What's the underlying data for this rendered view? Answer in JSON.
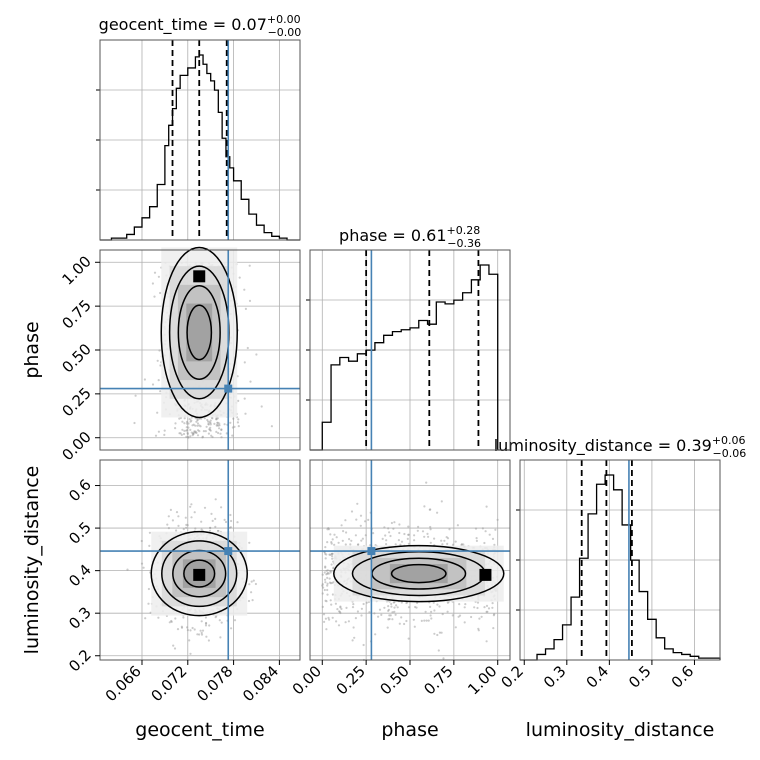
{
  "chart_data": {
    "type": "corner",
    "parameters": [
      "geocent_time",
      "phase",
      "luminosity_distance"
    ],
    "axis_labels": {
      "geocent_time": "geocent_time",
      "phase": "phase",
      "luminosity_distance": "luminosity_distance"
    },
    "titles": [
      {
        "param": "geocent_time",
        "name": "geocent_time",
        "median": "0.07",
        "plus": "+0.00",
        "minus": "−0.00"
      },
      {
        "param": "phase",
        "name": "phase",
        "median": "0.61",
        "plus": "+0.28",
        "minus": "−0.36"
      },
      {
        "param": "luminosity_distance",
        "name": "luminosity_distance",
        "median": "0.39",
        "plus": "+0.06",
        "minus": "−0.06"
      }
    ],
    "ranges": {
      "geocent_time": [
        0.0605,
        0.0867
      ],
      "phase": [
        -0.07,
        1.07
      ],
      "luminosity_distance": [
        0.19,
        0.66
      ]
    },
    "ticks": {
      "geocent_time": [
        0.066,
        0.072,
        0.078,
        0.084
      ],
      "phase": [
        0.0,
        0.25,
        0.5,
        0.75,
        1.0
      ],
      "luminosity_distance": [
        0.2,
        0.3,
        0.4,
        0.5,
        0.6
      ]
    },
    "tick_labels": {
      "geocent_time": [
        "0.066",
        "0.072",
        "0.078",
        "0.084"
      ],
      "phase": [
        "0.00",
        "0.25",
        "0.50",
        "0.75",
        "1.00"
      ],
      "luminosity_distance": [
        "0.2",
        "0.3",
        "0.4",
        "0.5",
        "0.6"
      ]
    },
    "truths": {
      "geocent_time": 0.0773,
      "phase": 0.28,
      "luminosity_distance": 0.446
    },
    "quantiles": {
      "geocent_time": [
        0.07,
        0.0735,
        0.0771
      ],
      "phase": [
        0.25,
        0.61,
        0.89
      ],
      "luminosity_distance": [
        0.335,
        0.393,
        0.453
      ]
    },
    "histograms": {
      "geocent_time": {
        "edges": [
          0.0605,
          0.062,
          0.064,
          0.065,
          0.066,
          0.067,
          0.068,
          0.069,
          0.0695,
          0.07,
          0.0705,
          0.071,
          0.072,
          0.073,
          0.0735,
          0.074,
          0.0745,
          0.075,
          0.0755,
          0.076,
          0.0765,
          0.077,
          0.0775,
          0.078,
          0.079,
          0.08,
          0.081,
          0.082,
          0.083,
          0.084,
          0.085,
          0.0867
        ],
        "counts": [
          0,
          0.01,
          0.03,
          0.07,
          0.12,
          0.18,
          0.3,
          0.51,
          0.62,
          0.71,
          0.82,
          0.89,
          0.93,
          0.99,
          1.0,
          0.95,
          0.9,
          0.86,
          0.81,
          0.69,
          0.55,
          0.45,
          0.39,
          0.32,
          0.22,
          0.14,
          0.08,
          0.04,
          0.02,
          0.01,
          0
        ]
      },
      "phase": {
        "edges": [
          -0.07,
          0.0,
          0.05,
          0.1,
          0.15,
          0.2,
          0.25,
          0.3,
          0.35,
          0.4,
          0.45,
          0.5,
          0.55,
          0.6,
          0.65,
          0.7,
          0.75,
          0.8,
          0.85,
          0.9,
          0.95,
          1.0,
          1.07
        ],
        "counts": [
          0.0,
          0.15,
          0.46,
          0.5,
          0.48,
          0.52,
          0.54,
          0.58,
          0.62,
          0.64,
          0.65,
          0.66,
          0.7,
          0.68,
          0.8,
          0.79,
          0.81,
          0.85,
          0.92,
          1.0,
          0.95,
          0.0
        ]
      },
      "luminosity_distance": {
        "edges": [
          0.19,
          0.23,
          0.25,
          0.27,
          0.29,
          0.31,
          0.33,
          0.35,
          0.37,
          0.39,
          0.41,
          0.43,
          0.45,
          0.47,
          0.49,
          0.51,
          0.53,
          0.55,
          0.57,
          0.59,
          0.61,
          0.66
        ],
        "counts": [
          0.0,
          0.03,
          0.06,
          0.11,
          0.19,
          0.34,
          0.55,
          0.79,
          0.95,
          1.0,
          0.92,
          0.73,
          0.54,
          0.37,
          0.22,
          0.12,
          0.06,
          0.04,
          0.03,
          0.02,
          0.01
        ]
      }
    },
    "density_2d": {
      "phase_vs_geocent_time": {
        "center_x": 0.0735,
        "center_y": 0.62,
        "sigma_x": 0.0025,
        "sigma_y": 0.38,
        "peak": [
          0.0735,
          0.92
        ]
      },
      "luminosity_distance_vs_geocent_time": {
        "center_x": 0.0735,
        "center_y": 0.393,
        "sigma_x": 0.0025,
        "sigma_y": 0.06,
        "peak": [
          0.0735,
          0.39
        ]
      },
      "luminosity_distance_vs_phase": {
        "center_x": 0.6,
        "center_y": 0.393,
        "sigma_x": 0.36,
        "sigma_y": 0.06,
        "peak": [
          0.93,
          0.39
        ]
      }
    },
    "grid": true,
    "truth_color": "#4682b4",
    "hist_color": "#000000"
  }
}
